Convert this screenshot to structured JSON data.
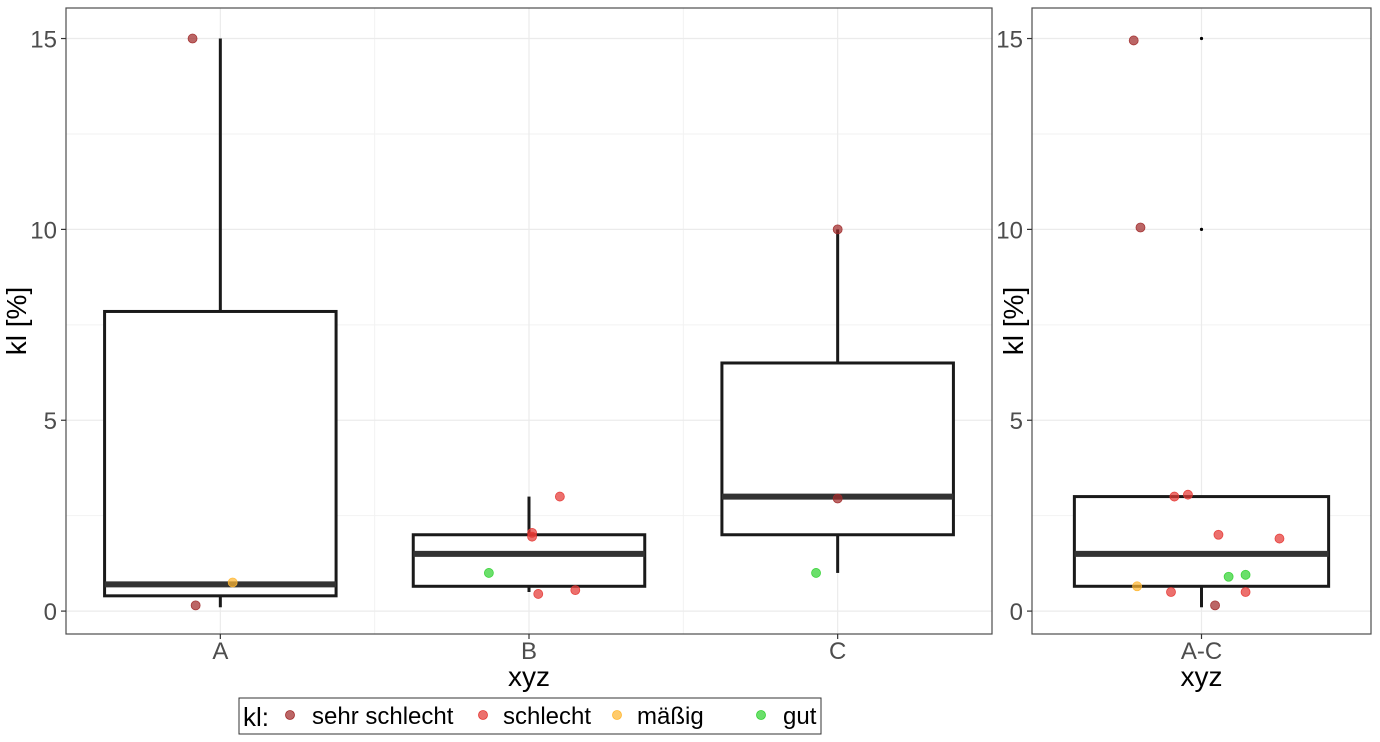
{
  "chart_data": [
    {
      "type": "boxplot",
      "xlabel": "xyz",
      "ylabel": "kl [%]",
      "ylim": [
        -0.6,
        15.8
      ],
      "yticks": [
        0,
        5,
        10,
        15
      ],
      "grid": true,
      "categories": [
        "A",
        "B",
        "C"
      ],
      "boxes": [
        {
          "category": "A",
          "whisker_low": 0.1,
          "q1": 0.4,
          "median": 0.7,
          "q3": 7.85,
          "whisker_high": 15.0
        },
        {
          "category": "B",
          "whisker_low": 0.5,
          "q1": 0.65,
          "median": 1.5,
          "q3": 2.0,
          "whisker_high": 3.0
        },
        {
          "category": "C",
          "whisker_low": 1.0,
          "q1": 2.0,
          "median": 3.0,
          "q3": 6.5,
          "whisker_high": 10.0
        }
      ],
      "points": [
        {
          "category": "A",
          "offset": -0.09,
          "y": 15.0,
          "class": "sehr schlecht"
        },
        {
          "category": "A",
          "offset": -0.08,
          "y": 0.15,
          "class": "sehr schlecht"
        },
        {
          "category": "A",
          "offset": 0.04,
          "y": 0.75,
          "class": "mäßig"
        },
        {
          "category": "B",
          "offset": 0.01,
          "y": 1.95,
          "class": "schlecht"
        },
        {
          "category": "B",
          "offset": 0.01,
          "y": 2.05,
          "class": "schlecht"
        },
        {
          "category": "B",
          "offset": 0.1,
          "y": 3.0,
          "class": "schlecht"
        },
        {
          "category": "B",
          "offset": 0.03,
          "y": 0.45,
          "class": "schlecht"
        },
        {
          "category": "B",
          "offset": 0.15,
          "y": 0.55,
          "class": "schlecht"
        },
        {
          "category": "B",
          "offset": -0.13,
          "y": 1.0,
          "class": "gut"
        },
        {
          "category": "C",
          "offset": 0.0,
          "y": 10.0,
          "class": "sehr schlecht"
        },
        {
          "category": "C",
          "offset": 0.0,
          "y": 2.95,
          "class": "sehr schlecht"
        },
        {
          "category": "C",
          "offset": -0.07,
          "y": 1.0,
          "class": "gut"
        }
      ]
    },
    {
      "type": "boxplot",
      "xlabel": "xyz",
      "ylabel": "kl [%]",
      "ylim": [
        -0.6,
        15.8
      ],
      "yticks": [
        0,
        5,
        10,
        15
      ],
      "grid": true,
      "categories": [
        "A-C"
      ],
      "boxes": [
        {
          "category": "A-C",
          "whisker_low": 0.1,
          "q1": 0.65,
          "median": 1.5,
          "q3": 3.0,
          "whisker_high": 3.0
        }
      ],
      "outliers": [
        {
          "category": "A-C",
          "y": 15.0
        },
        {
          "category": "A-C",
          "y": 10.0
        }
      ],
      "points": [
        {
          "category": "A-C",
          "offset": -0.2,
          "y": 14.95,
          "class": "sehr schlecht"
        },
        {
          "category": "A-C",
          "offset": -0.18,
          "y": 10.05,
          "class": "sehr schlecht"
        },
        {
          "category": "A-C",
          "offset": -0.08,
          "y": 3.0,
          "class": "schlecht"
        },
        {
          "category": "A-C",
          "offset": -0.04,
          "y": 3.05,
          "class": "schlecht"
        },
        {
          "category": "A-C",
          "offset": 0.05,
          "y": 2.0,
          "class": "schlecht"
        },
        {
          "category": "A-C",
          "offset": 0.23,
          "y": 1.9,
          "class": "schlecht"
        },
        {
          "category": "A-C",
          "offset": 0.08,
          "y": 0.9,
          "class": "gut"
        },
        {
          "category": "A-C",
          "offset": 0.13,
          "y": 0.95,
          "class": "gut"
        },
        {
          "category": "A-C",
          "offset": -0.19,
          "y": 0.65,
          "class": "mäßig"
        },
        {
          "category": "A-C",
          "offset": -0.09,
          "y": 0.5,
          "class": "schlecht"
        },
        {
          "category": "A-C",
          "offset": 0.13,
          "y": 0.5,
          "class": "schlecht"
        },
        {
          "category": "A-C",
          "offset": 0.04,
          "y": 0.15,
          "class": "sehr schlecht"
        }
      ]
    }
  ],
  "legend": {
    "title": "kl:",
    "placement": "bottom",
    "items": [
      {
        "label": "sehr schlecht",
        "color": "#a12b2b"
      },
      {
        "label": "schlecht",
        "color": "#e53935"
      },
      {
        "label": "mäßig",
        "color": "#ffb732"
      },
      {
        "label": "gut",
        "color": "#32d232"
      }
    ]
  }
}
